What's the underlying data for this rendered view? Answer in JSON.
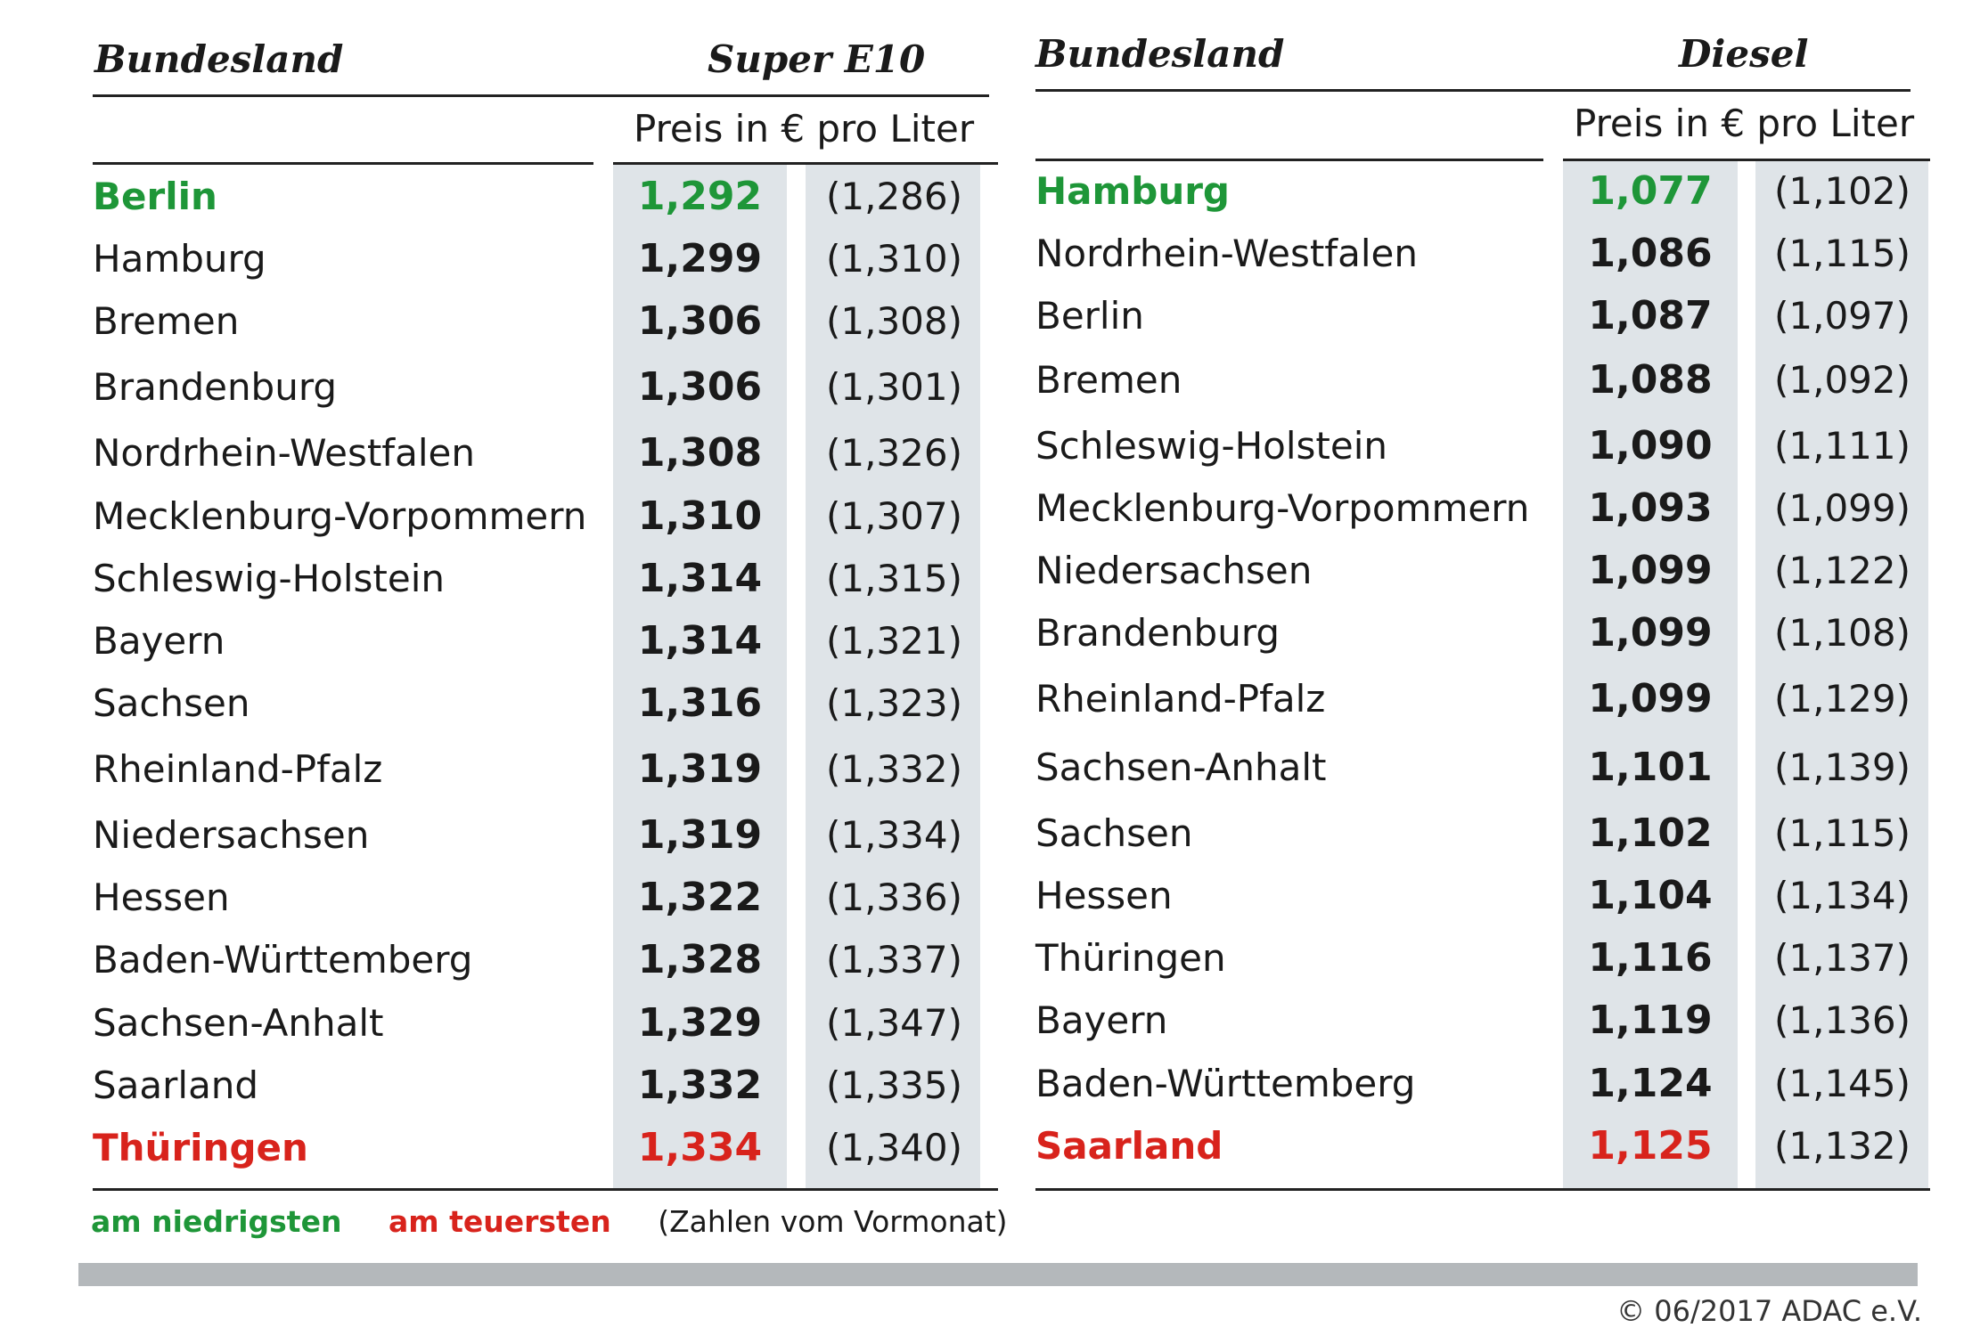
{
  "chart_data": [
    {
      "type": "table",
      "title": "Super E10",
      "columns": [
        "Bundesland",
        "Super E10",
        ""
      ],
      "unit_label": "Preis in € pro Liter",
      "rows": [
        {
          "state": "Berlin",
          "price": "1,292",
          "prev": "(1,286)",
          "status": "low"
        },
        {
          "state": "Hamburg",
          "price": "1,299",
          "prev": "(1,310)",
          "status": ""
        },
        {
          "state": "Bremen",
          "price": "1,306",
          "prev": "(1,308)",
          "status": ""
        },
        {
          "state": "Brandenburg",
          "price": "1,306",
          "prev": "(1,301)",
          "status": ""
        },
        {
          "state": "Nordrhein-Westfalen",
          "price": "1,308",
          "prev": "(1,326)",
          "status": ""
        },
        {
          "state": "Mecklenburg-Vorpommern",
          "price": "1,310",
          "prev": "(1,307)",
          "status": ""
        },
        {
          "state": "Schleswig-Holstein",
          "price": "1,314",
          "prev": "(1,315)",
          "status": ""
        },
        {
          "state": "Bayern",
          "price": "1,314",
          "prev": "(1,321)",
          "status": ""
        },
        {
          "state": "Sachsen",
          "price": "1,316",
          "prev": "(1,323)",
          "status": ""
        },
        {
          "state": "Rheinland-Pfalz",
          "price": "1,319",
          "prev": "(1,332)",
          "status": ""
        },
        {
          "state": "Niedersachsen",
          "price": "1,319",
          "prev": "(1,334)",
          "status": ""
        },
        {
          "state": "Hessen",
          "price": "1,322",
          "prev": "(1,336)",
          "status": ""
        },
        {
          "state": "Baden-Württemberg",
          "price": "1,328",
          "prev": "(1,337)",
          "status": ""
        },
        {
          "state": "Sachsen-Anhalt",
          "price": "1,329",
          "prev": "(1,347)",
          "status": ""
        },
        {
          "state": "Saarland",
          "price": "1,332",
          "prev": "(1,335)",
          "status": ""
        },
        {
          "state": "Thüringen",
          "price": "1,334",
          "prev": "(1,340)",
          "status": "high"
        }
      ]
    },
    {
      "type": "table",
      "title": "Diesel",
      "columns": [
        "Bundesland",
        "Diesel",
        ""
      ],
      "unit_label": "Preis in € pro Liter",
      "rows": [
        {
          "state": "Hamburg",
          "price": "1,077",
          "prev": "(1,102)",
          "status": "low"
        },
        {
          "state": "Nordrhein-Westfalen",
          "price": "1,086",
          "prev": "(1,115)",
          "status": ""
        },
        {
          "state": "Berlin",
          "price": "1,087",
          "prev": "(1,097)",
          "status": ""
        },
        {
          "state": "Bremen",
          "price": "1,088",
          "prev": "(1,092)",
          "status": ""
        },
        {
          "state": "Schleswig-Holstein",
          "price": "1,090",
          "prev": "(1,111)",
          "status": ""
        },
        {
          "state": "Mecklenburg-Vorpommern",
          "price": "1,093",
          "prev": "(1,099)",
          "status": ""
        },
        {
          "state": "Niedersachsen",
          "price": "1,099",
          "prev": "(1,122)",
          "status": ""
        },
        {
          "state": "Brandenburg",
          "price": "1,099",
          "prev": "(1,108)",
          "status": ""
        },
        {
          "state": "Rheinland-Pfalz",
          "price": "1,099",
          "prev": "(1,129)",
          "status": ""
        },
        {
          "state": "Sachsen-Anhalt",
          "price": "1,101",
          "prev": "(1,139)",
          "status": ""
        },
        {
          "state": "Sachsen",
          "price": "1,102",
          "prev": "(1,115)",
          "status": ""
        },
        {
          "state": "Hessen",
          "price": "1,104",
          "prev": "(1,134)",
          "status": ""
        },
        {
          "state": "Thüringen",
          "price": "1,116",
          "prev": "(1,137)",
          "status": ""
        },
        {
          "state": "Bayern",
          "price": "1,119",
          "prev": "(1,136)",
          "status": ""
        },
        {
          "state": "Baden-Württemberg",
          "price": "1,124",
          "prev": "(1,145)",
          "status": ""
        },
        {
          "state": "Saarland",
          "price": "1,125",
          "prev": "(1,132)",
          "status": "high"
        }
      ]
    }
  ],
  "legend": {
    "low": "am niedrigsten",
    "high": "am teuersten",
    "note": "(Zahlen vom Vormonat)"
  },
  "colors": {
    "low": "#1e9638",
    "high": "#d8231c",
    "column_shade": "#dfe4e8",
    "bar": "#b4b8bb"
  },
  "credit": "© 06/2017 ADAC e.V."
}
